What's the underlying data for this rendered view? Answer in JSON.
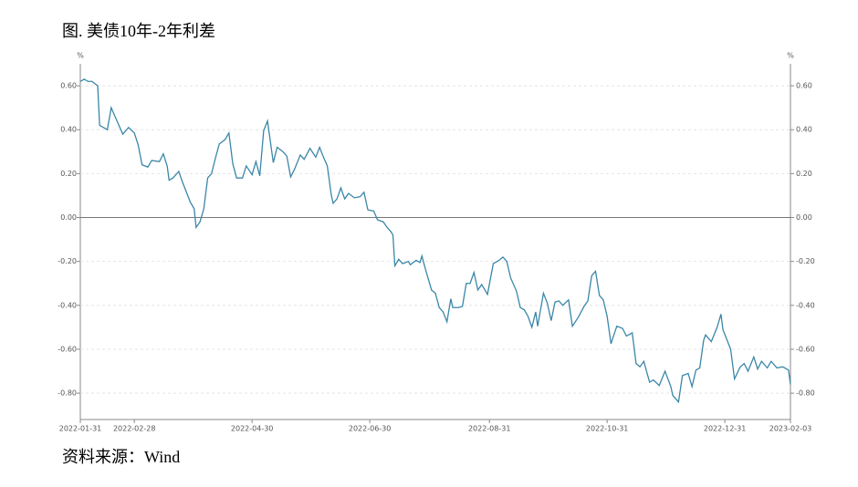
{
  "chart_data": {
    "type": "line",
    "title": "图. 美债10年-2年利差",
    "source": "资料来源：Wind",
    "y_unit": "%",
    "y2_unit": "%",
    "xlim": [
      "2022-01-31",
      "2023-02-03"
    ],
    "xticks": [
      "2022-01-31",
      "2022-02-28",
      "2022-04-30",
      "2022-06-30",
      "2022-08-31",
      "2022-10-31",
      "2022-12-31",
      "2023-02-03"
    ],
    "ylim": [
      -0.92,
      0.7
    ],
    "yticks": [
      {
        "value": -0.8,
        "label": "-0.80"
      },
      {
        "value": -0.6,
        "label": "-0.60"
      },
      {
        "value": -0.4,
        "label": "-0.40"
      },
      {
        "value": -0.2,
        "label": "-0.20"
      },
      {
        "value": 0,
        "label": "0.00"
      },
      {
        "value": 0.2,
        "label": "0.20"
      },
      {
        "value": 0.4,
        "label": "0.40"
      },
      {
        "value": 0.6,
        "label": "0.60"
      }
    ],
    "y2lim": [
      -0.92,
      0.7
    ],
    "y2ticks": [
      {
        "value": -0.8,
        "label": "-0.80"
      },
      {
        "value": -0.6,
        "label": "-0.60"
      },
      {
        "value": -0.4,
        "label": "-0.40"
      },
      {
        "value": -0.2,
        "label": "-0.20"
      },
      {
        "value": 0,
        "label": "0.00"
      },
      {
        "value": 0.2,
        "label": "0.20"
      },
      {
        "value": 0.4,
        "label": "0.40"
      },
      {
        "value": 0.6,
        "label": "0.60"
      }
    ],
    "grid": true,
    "x": [
      "2022-01-31",
      "2022-02-02",
      "2022-02-04",
      "2022-02-06",
      "2022-02-09",
      "2022-02-10",
      "2022-02-14",
      "2022-02-16",
      "2022-02-19",
      "2022-02-22",
      "2022-02-25",
      "2022-02-28",
      "2022-03-02",
      "2022-03-04",
      "2022-03-07",
      "2022-03-09",
      "2022-03-13",
      "2022-03-15",
      "2022-03-17",
      "2022-03-18",
      "2022-03-20",
      "2022-03-23",
      "2022-03-25",
      "2022-03-29",
      "2022-03-31",
      "2022-04-01",
      "2022-04-03",
      "2022-04-05",
      "2022-04-07",
      "2022-04-09",
      "2022-04-11",
      "2022-04-13",
      "2022-04-16",
      "2022-04-18",
      "2022-04-20",
      "2022-04-22",
      "2022-04-25",
      "2022-04-27",
      "2022-04-30",
      "2022-05-02",
      "2022-05-04",
      "2022-05-06",
      "2022-05-08",
      "2022-05-11",
      "2022-05-13",
      "2022-05-16",
      "2022-05-18",
      "2022-05-20",
      "2022-05-22",
      "2022-05-25",
      "2022-05-27",
      "2022-05-30",
      "2022-06-02",
      "2022-06-04",
      "2022-06-06",
      "2022-06-08",
      "2022-06-10",
      "2022-06-11",
      "2022-06-13",
      "2022-06-15",
      "2022-06-17",
      "2022-06-19",
      "2022-06-22",
      "2022-06-25",
      "2022-06-27",
      "2022-06-29",
      "2022-07-02",
      "2022-07-04",
      "2022-07-07",
      "2022-07-09",
      "2022-07-11",
      "2022-07-12",
      "2022-07-13",
      "2022-07-15",
      "2022-07-17",
      "2022-07-20",
      "2022-07-21",
      "2022-07-24",
      "2022-07-26",
      "2022-07-27",
      "2022-07-29",
      "2022-08-01",
      "2022-08-03",
      "2022-08-05",
      "2022-08-07",
      "2022-08-09",
      "2022-08-11",
      "2022-08-12",
      "2022-08-15",
      "2022-08-17",
      "2022-08-19",
      "2022-08-21",
      "2022-08-23",
      "2022-08-25",
      "2022-08-27",
      "2022-08-30",
      "2022-09-02",
      "2022-09-05",
      "2022-09-07",
      "2022-09-09",
      "2022-09-11",
      "2022-09-14",
      "2022-09-16",
      "2022-09-18",
      "2022-09-20",
      "2022-09-22",
      "2022-09-24",
      "2022-09-25",
      "2022-09-28",
      "2022-09-30",
      "2022-10-02",
      "2022-10-04",
      "2022-10-06",
      "2022-10-08",
      "2022-10-11",
      "2022-10-13",
      "2022-10-16",
      "2022-10-19",
      "2022-10-21",
      "2022-10-23",
      "2022-10-25",
      "2022-10-27",
      "2022-10-29",
      "2022-10-31",
      "2022-11-02",
      "2022-11-05",
      "2022-11-08",
      "2022-11-10",
      "2022-11-13",
      "2022-11-15",
      "2022-11-17",
      "2022-11-19",
      "2022-11-22",
      "2022-11-24",
      "2022-11-27",
      "2022-11-30",
      "2022-12-03",
      "2022-12-04",
      "2022-12-07",
      "2022-12-09",
      "2022-12-12",
      "2022-12-14",
      "2022-12-16",
      "2022-12-18",
      "2022-12-20",
      "2022-12-21",
      "2022-12-24",
      "2022-12-27",
      "2022-12-29",
      "2022-12-30",
      "2023-01-03",
      "2023-01-05",
      "2023-01-08",
      "2023-01-10",
      "2023-01-12",
      "2023-01-15",
      "2023-01-17",
      "2023-01-19",
      "2023-01-22",
      "2023-01-24",
      "2023-01-27",
      "2023-01-30",
      "2023-02-02",
      "2023-02-03"
    ],
    "series": [
      {
        "color": "#3a87a8",
        "values": [
          0.62,
          0.63,
          0.62,
          0.62,
          0.6,
          0.42,
          0.4,
          0.5,
          0.44,
          0.38,
          0.41,
          0.385,
          0.33,
          0.24,
          0.23,
          0.26,
          0.255,
          0.29,
          0.235,
          0.17,
          0.18,
          0.21,
          0.16,
          0.07,
          0.04,
          -0.045,
          -0.02,
          0.04,
          0.18,
          0.2,
          0.27,
          0.335,
          0.355,
          0.385,
          0.245,
          0.18,
          0.18,
          0.235,
          0.195,
          0.255,
          0.19,
          0.395,
          0.44,
          0.25,
          0.32,
          0.3,
          0.28,
          0.185,
          0.22,
          0.285,
          0.265,
          0.315,
          0.275,
          0.32,
          0.275,
          0.235,
          0.105,
          0.065,
          0.085,
          0.135,
          0.085,
          0.11,
          0.09,
          0.095,
          0.115,
          0.035,
          0.03,
          -0.01,
          -0.02,
          -0.045,
          -0.065,
          -0.08,
          -0.22,
          -0.19,
          -0.21,
          -0.2,
          -0.215,
          -0.195,
          -0.205,
          -0.175,
          -0.24,
          -0.33,
          -0.345,
          -0.41,
          -0.43,
          -0.475,
          -0.37,
          -0.41,
          -0.41,
          -0.405,
          -0.3,
          -0.3,
          -0.25,
          -0.33,
          -0.305,
          -0.35,
          -0.21,
          -0.195,
          -0.18,
          -0.2,
          -0.275,
          -0.335,
          -0.41,
          -0.42,
          -0.45,
          -0.5,
          -0.43,
          -0.495,
          -0.345,
          -0.39,
          -0.47,
          -0.385,
          -0.38,
          -0.4,
          -0.375,
          -0.495,
          -0.455,
          -0.405,
          -0.38,
          -0.265,
          -0.245,
          -0.355,
          -0.375,
          -0.45,
          -0.575,
          -0.495,
          -0.505,
          -0.54,
          -0.525,
          -0.665,
          -0.68,
          -0.655,
          -0.75,
          -0.74,
          -0.765,
          -0.7,
          -0.77,
          -0.81,
          -0.84,
          -0.72,
          -0.71,
          -0.77,
          -0.695,
          -0.685,
          -0.56,
          -0.535,
          -0.565,
          -0.5,
          -0.44,
          -0.51,
          -0.6,
          -0.735,
          -0.68,
          -0.665,
          -0.7,
          -0.635,
          -0.69,
          -0.655,
          -0.685,
          -0.655,
          -0.685,
          -0.68,
          -0.695,
          -0.76
        ]
      }
    ]
  }
}
